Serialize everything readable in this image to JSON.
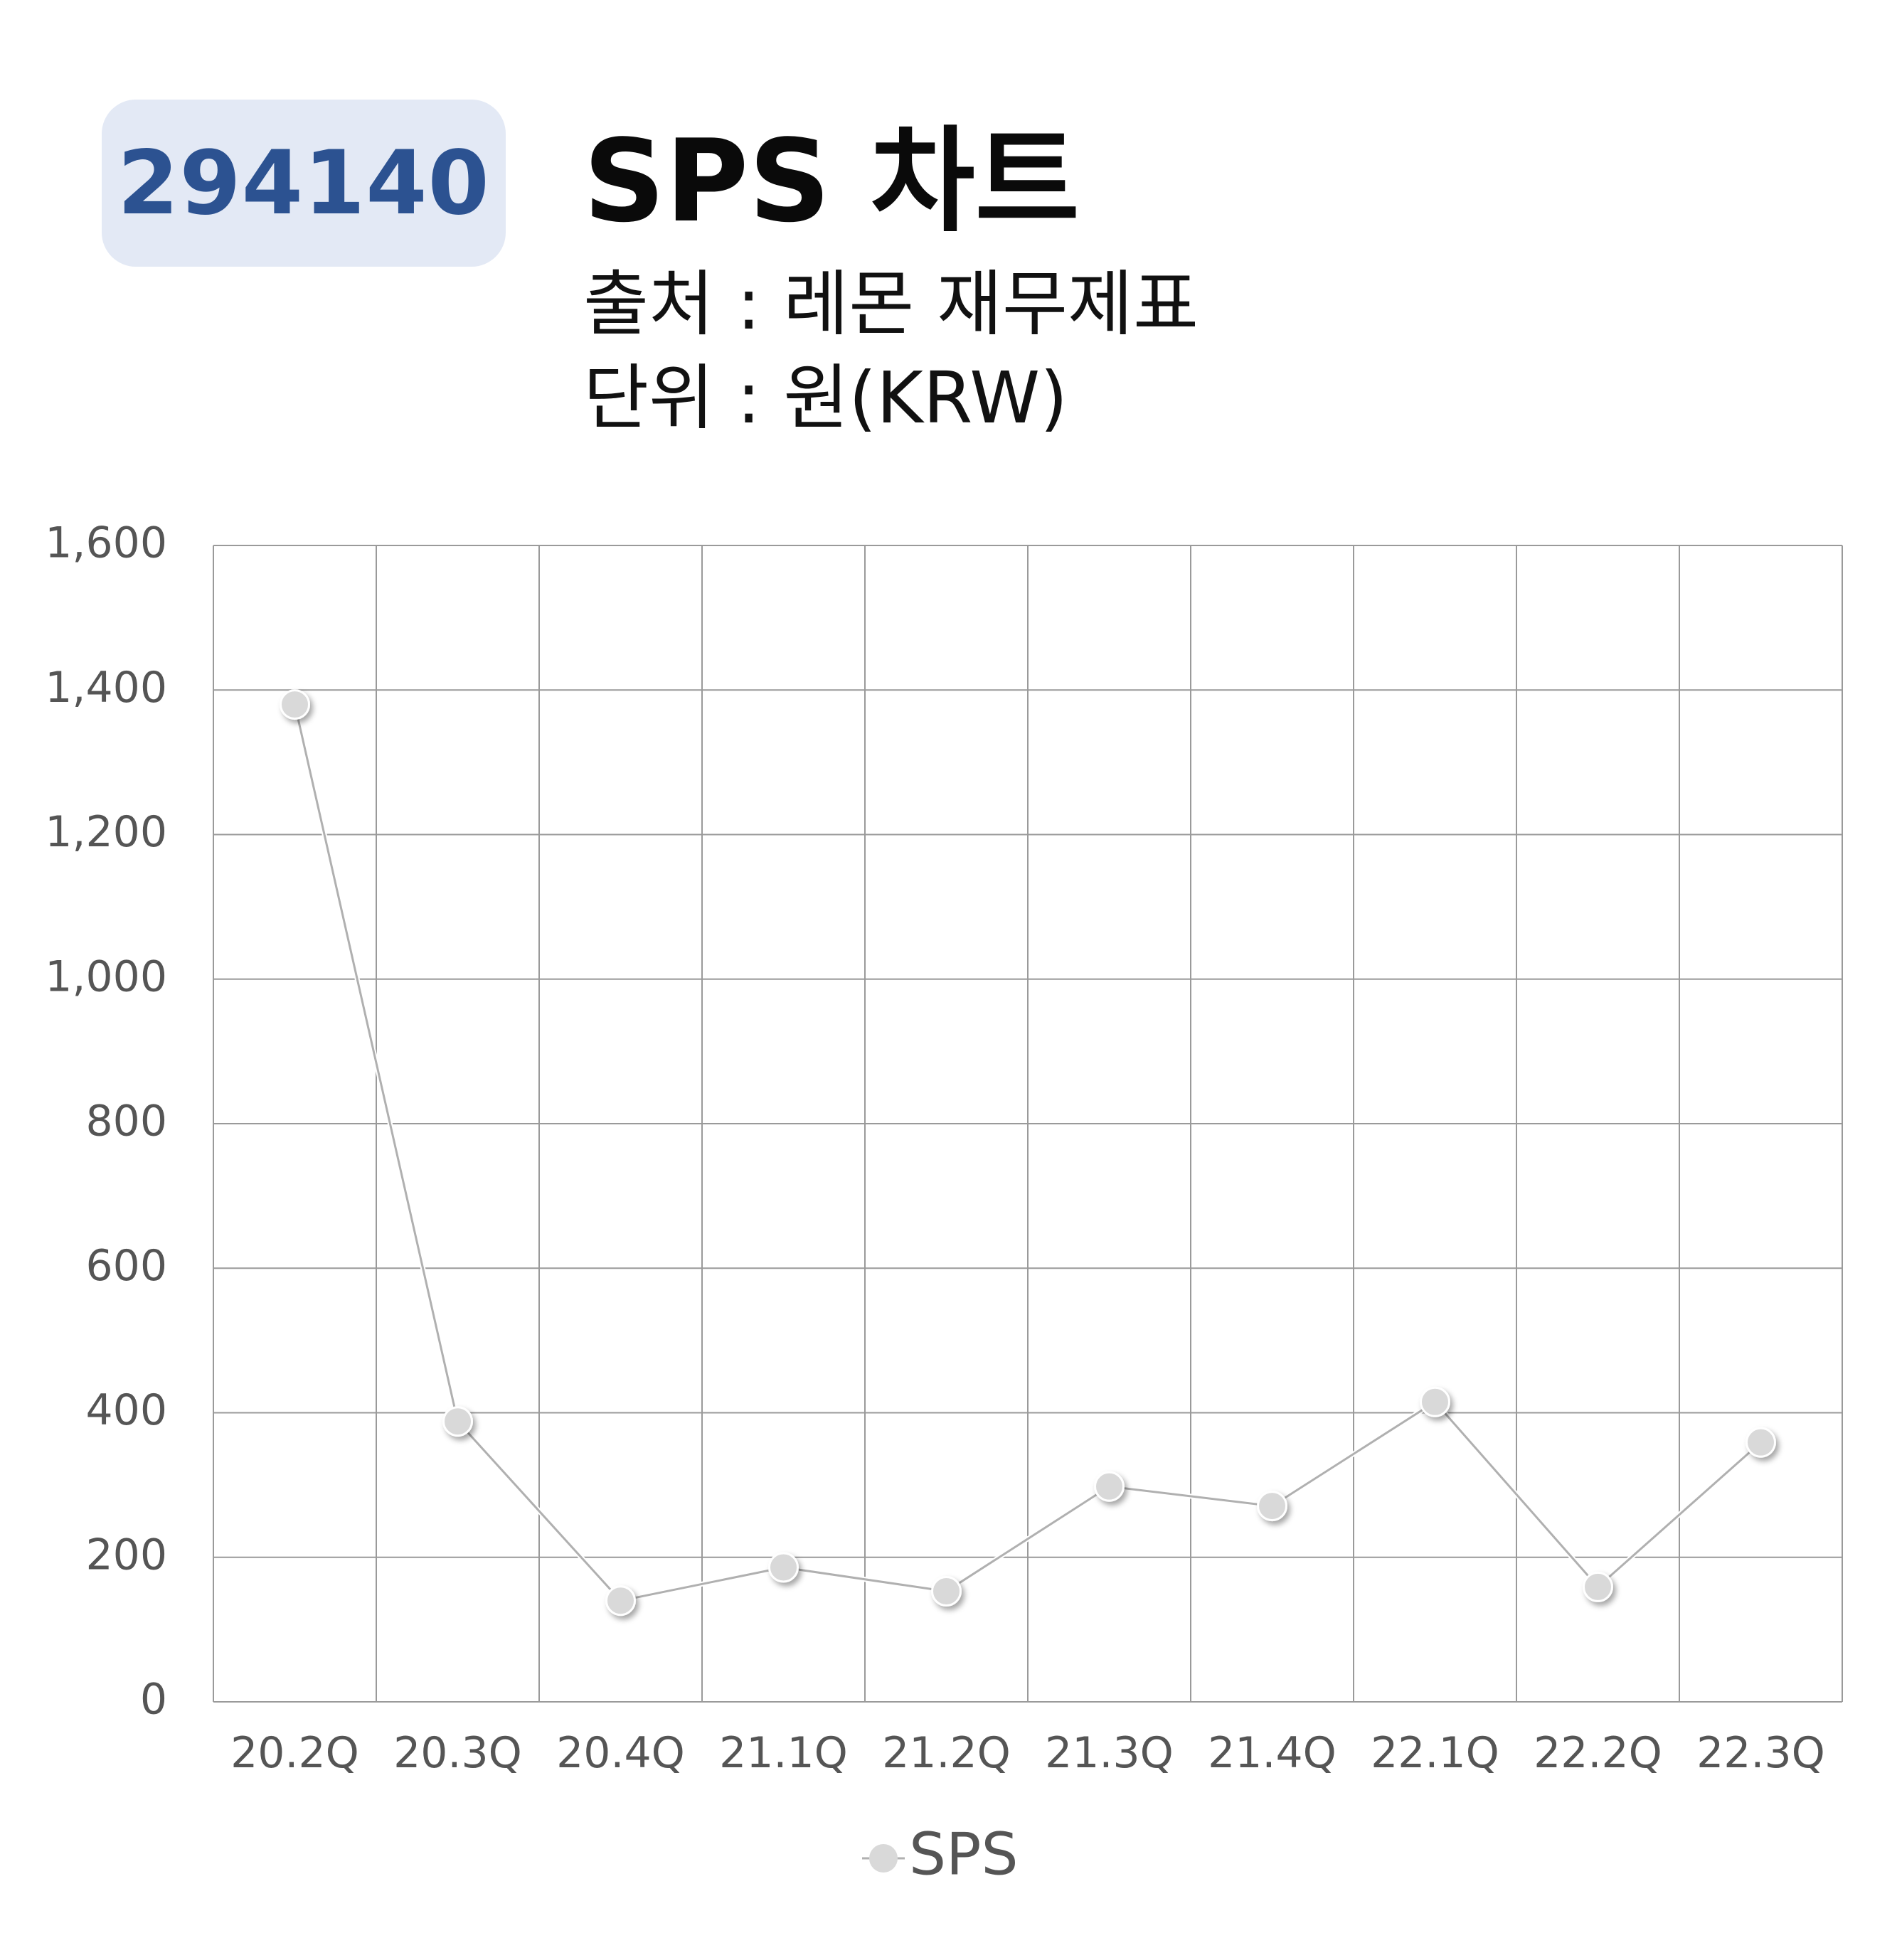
{
  "header": {
    "code": "294140",
    "title": "SPS 차트",
    "source": "출처 : 레몬 재무제표",
    "unit": "단위 : 원(KRW)"
  },
  "colors": {
    "badge_bg": "#e3e9f5",
    "badge_text": "#2c5291",
    "line": "#b0b0b0",
    "marker": "#d9d9d9",
    "grid": "#9a9a9a"
  },
  "chart_data": {
    "type": "line",
    "categories": [
      "20.2Q",
      "20.3Q",
      "20.4Q",
      "21.1Q",
      "21.2Q",
      "21.3Q",
      "21.4Q",
      "22.1Q",
      "22.2Q",
      "22.3Q"
    ],
    "series": [
      {
        "name": "SPS",
        "values": [
          1380,
          388,
          140,
          186,
          153,
          298,
          271,
          415,
          159,
          359
        ]
      }
    ],
    "ylim": [
      0,
      1600
    ],
    "yticks": [
      0,
      200,
      400,
      600,
      800,
      1000,
      1200,
      1400,
      1600
    ],
    "ytick_labels": [
      "0",
      "200",
      "400",
      "600",
      "800",
      "1,000",
      "1,200",
      "1,400",
      "1,600"
    ],
    "grid": true,
    "legend_position": "bottom",
    "xlabel": "",
    "ylabel": ""
  }
}
